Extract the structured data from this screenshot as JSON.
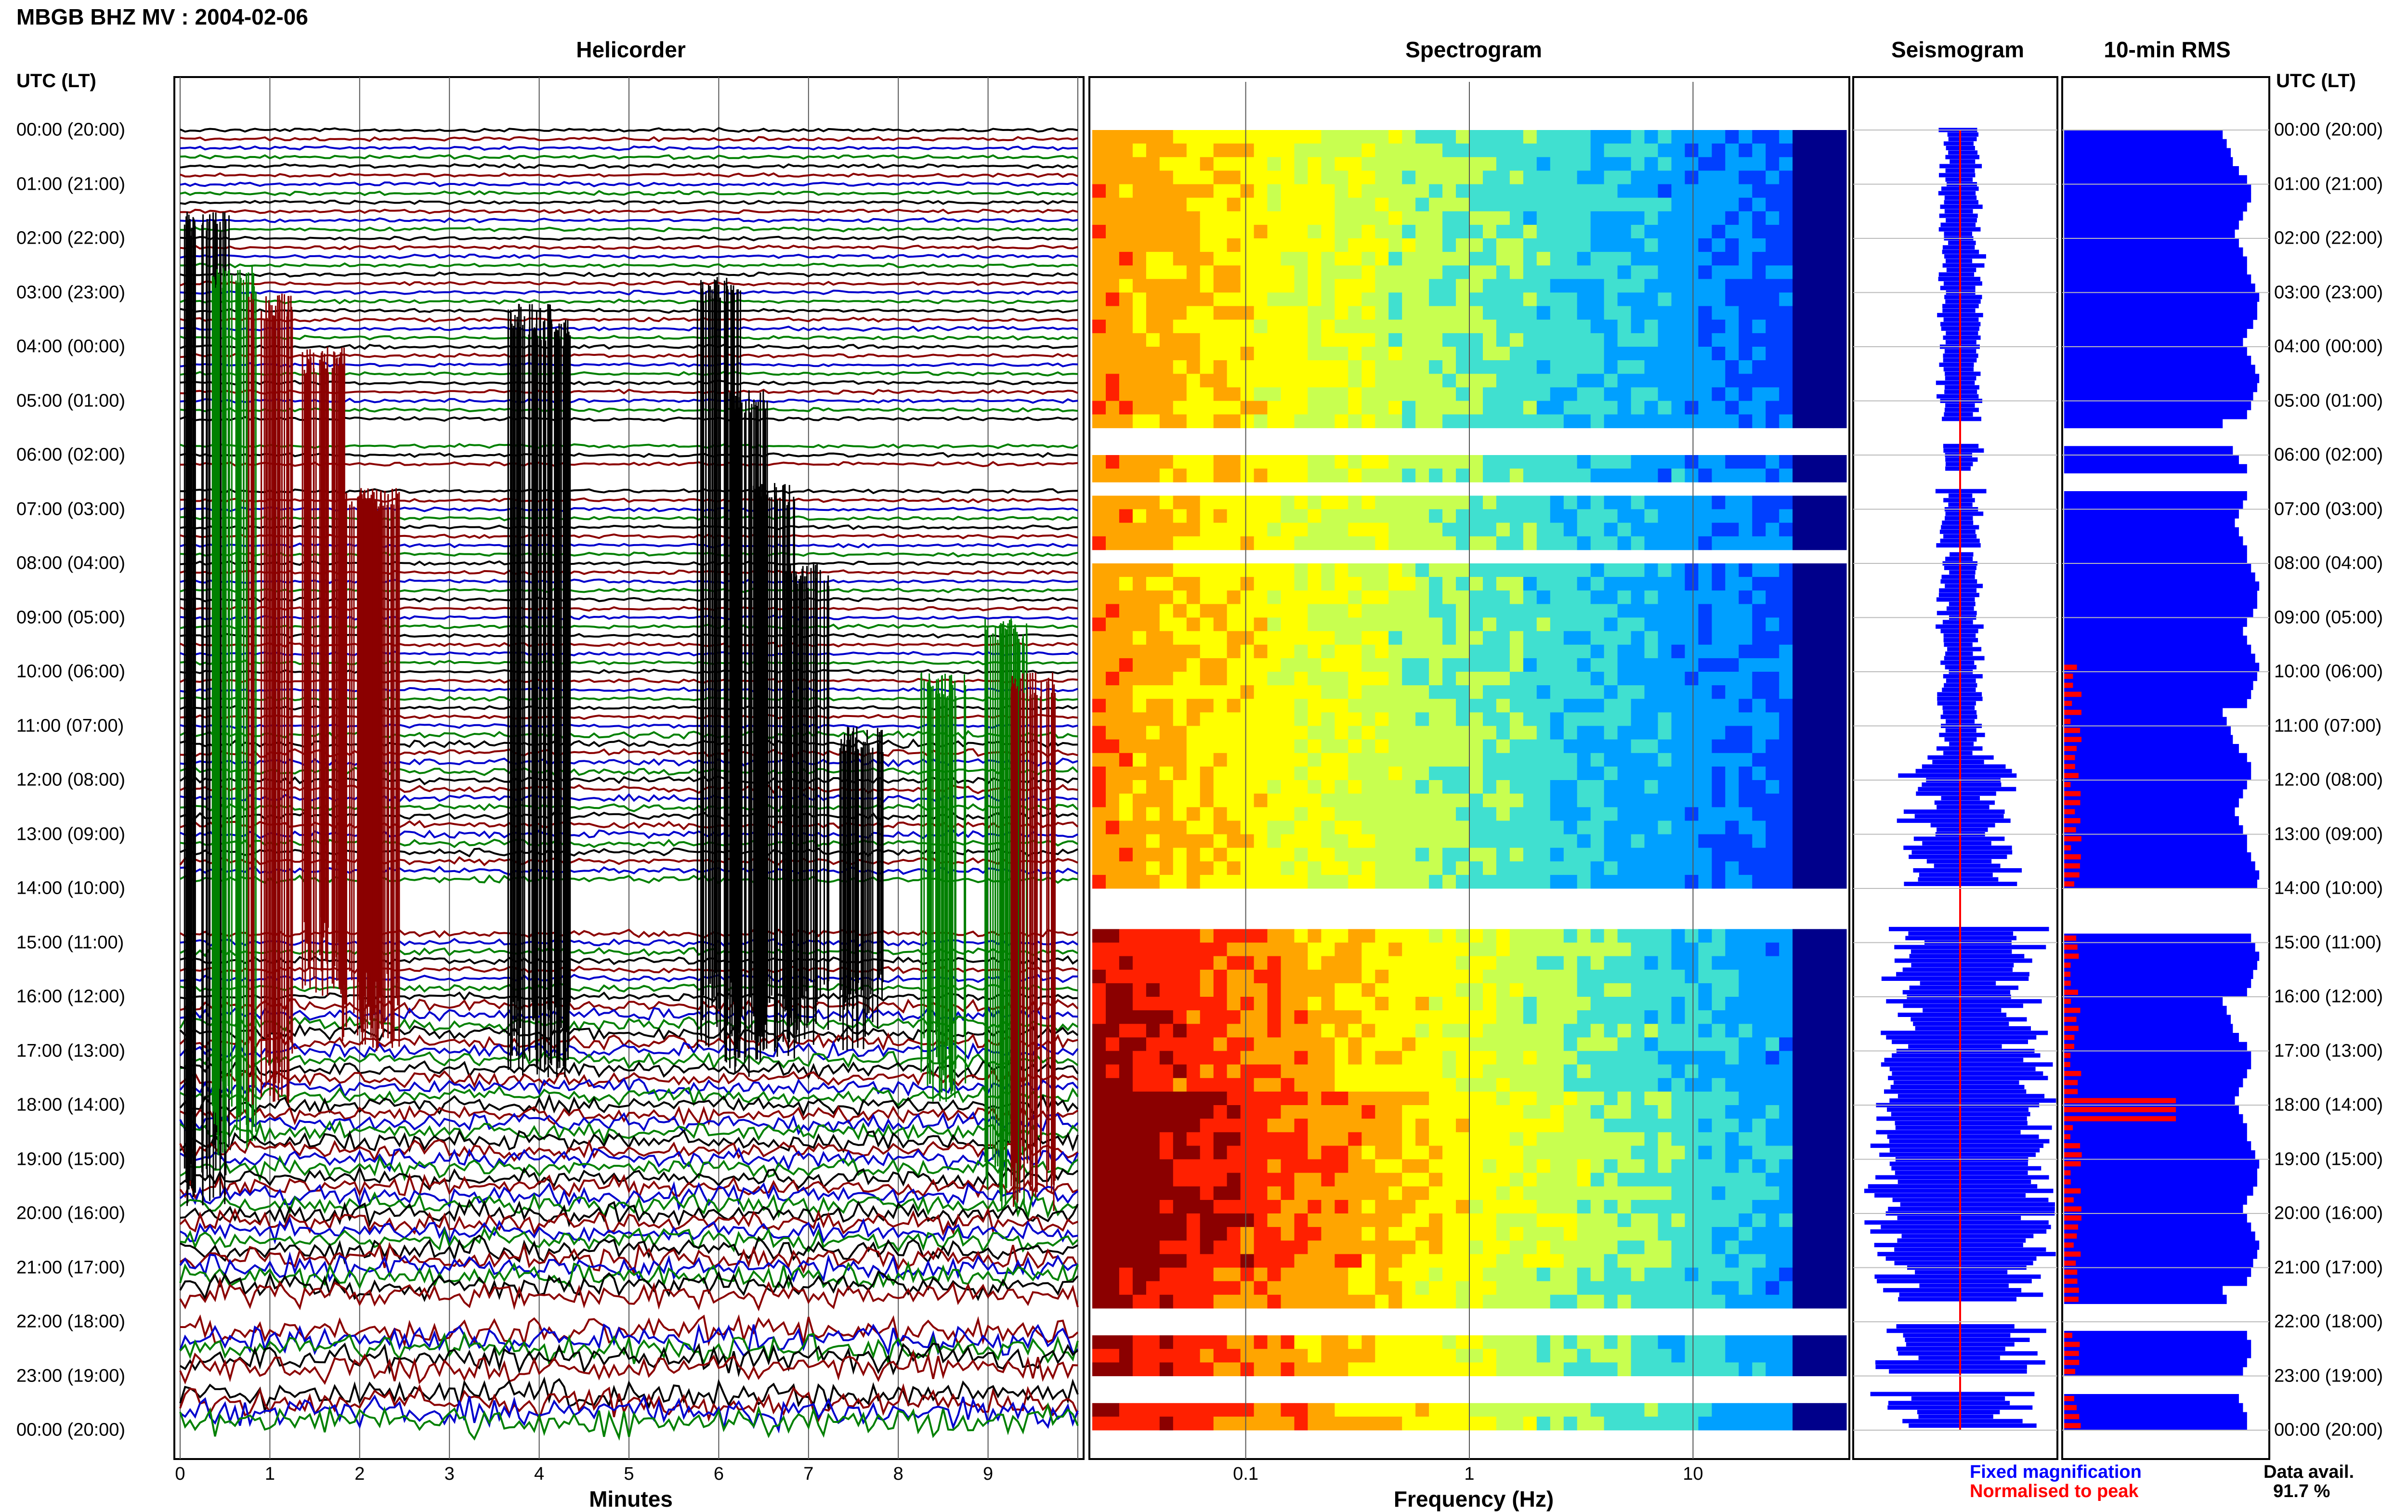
{
  "title": "MBGB BHZ MV : 2004-02-06",
  "utc_header": "UTC (LT)",
  "panels": {
    "helicorder": "Helicorder",
    "spectrogram": "Spectrogram",
    "seismogram": "Seismogram",
    "rms": "10-min RMS"
  },
  "legend": {
    "fixed": "Fixed magnification",
    "normalised": "Normalised to peak",
    "fixed_color": "#0000ff",
    "normalised_color": "#ff0000"
  },
  "data_availability": {
    "label": "Data avail.",
    "value": "91.7 %"
  },
  "chart_data": {
    "type": "heatmap",
    "hour_labels": [
      "00:00 (20:00)",
      "01:00 (21:00)",
      "02:00 (22:00)",
      "03:00 (23:00)",
      "04:00 (00:00)",
      "05:00 (01:00)",
      "06:00 (02:00)",
      "07:00 (03:00)",
      "08:00 (04:00)",
      "09:00 (05:00)",
      "10:00 (06:00)",
      "11:00 (07:00)",
      "12:00 (08:00)",
      "13:00 (09:00)",
      "14:00 (10:00)",
      "15:00 (11:00)",
      "16:00 (12:00)",
      "17:00 (13:00)",
      "18:00 (14:00)",
      "19:00 (15:00)",
      "20:00 (16:00)",
      "21:00 (17:00)",
      "22:00 (18:00)",
      "23:00 (19:00)",
      "00:00 (20:00)"
    ],
    "helicorder": {
      "xlabel": "Minutes",
      "xticks": [
        "0",
        "1",
        "2",
        "3",
        "4",
        "5",
        "6",
        "7",
        "8",
        "9"
      ],
      "xlim": [
        0,
        10
      ],
      "trace_colors": [
        "#000000",
        "#8b0000",
        "#0000cd",
        "#008000"
      ]
    },
    "spectrogram": {
      "xlabel": "Frequency (Hz)",
      "xscale": "log",
      "xticks": [
        "0.1",
        "1",
        "10"
      ],
      "xlim": [
        0.02,
        50
      ],
      "colormap": [
        "#00008b",
        "#0040ff",
        "#00a0ff",
        "#40e0d0",
        "#c8ff50",
        "#ffff00",
        "#ffa500",
        "#ff2000",
        "#8b0000"
      ]
    },
    "data_gaps_utc_hours": [
      [
        5.35,
        5.7
      ],
      [
        5.75,
        5.75
      ],
      [
        6.3,
        6.65
      ],
      [
        7.75,
        7.8
      ],
      [
        14.0,
        14.7
      ],
      [
        21.65,
        22.05
      ],
      [
        22.95,
        23.3
      ]
    ],
    "rms_10min": {
      "fixed_color": "#0000ff",
      "normalised_color": "#ff0000",
      "fixed_relative": [
        0.78,
        0.8,
        0.82,
        0.83,
        0.86,
        0.9,
        0.92,
        0.92,
        0.9,
        0.88,
        0.86,
        0.84,
        0.86,
        0.88,
        0.9,
        0.9,
        0.92,
        0.94,
        0.96,
        0.95,
        0.95,
        0.93,
        0.9,
        0.88,
        0.9,
        0.92,
        0.94,
        0.96,
        0.95,
        0.93,
        0.92,
        0.9
      ],
      "normalised_peak_hour_utc": 18.0,
      "normalised_peak_relative": 0.55
    }
  }
}
